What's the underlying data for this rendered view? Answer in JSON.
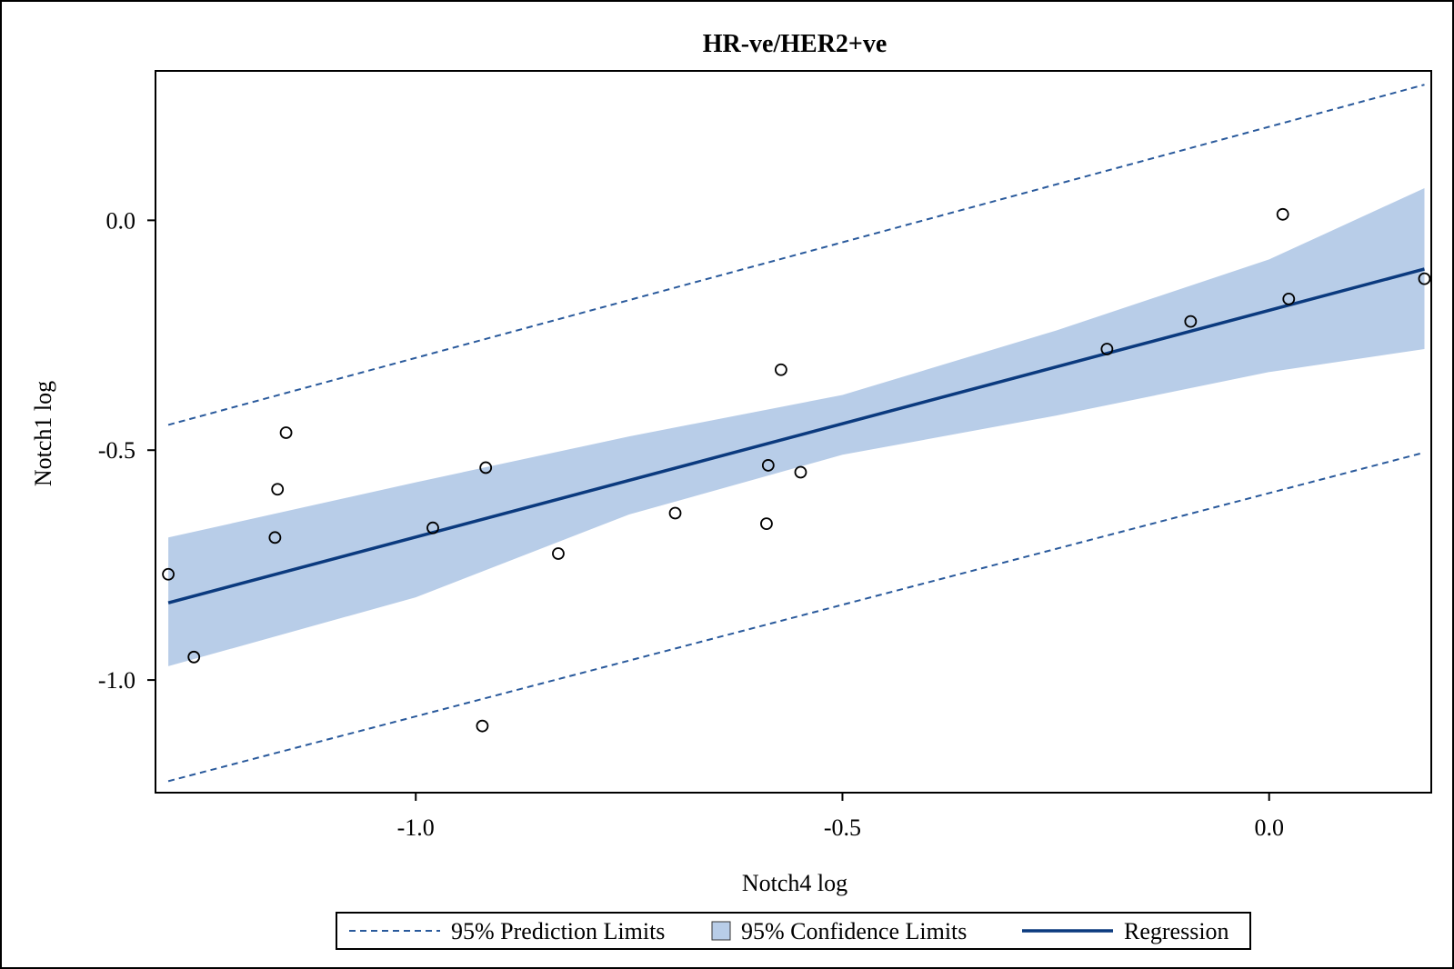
{
  "chart_data": {
    "type": "scatter",
    "title": "HR-ve/HER2+ve",
    "xlabel": "Notch4 log",
    "ylabel": "Notch1 log",
    "xlim": [
      -1.305,
      0.19
    ],
    "ylim": [
      -1.245,
      0.325
    ],
    "x_ticks": [
      -1.0,
      -0.5,
      0.0
    ],
    "x_tick_labels": [
      "-1.0",
      "-0.5",
      "0.0"
    ],
    "y_ticks": [
      -1.0,
      -0.5,
      0.0
    ],
    "y_tick_labels": [
      "-1.0",
      "-0.5",
      "0.0"
    ],
    "grid": false,
    "legend_position": "bottom",
    "points": [
      {
        "x": -1.29,
        "y": -0.77
      },
      {
        "x": -1.26,
        "y": -0.95
      },
      {
        "x": -1.165,
        "y": -0.69
      },
      {
        "x": -1.162,
        "y": -0.585
      },
      {
        "x": -1.152,
        "y": -0.462
      },
      {
        "x": -0.98,
        "y": -0.669
      },
      {
        "x": -0.918,
        "y": -0.538
      },
      {
        "x": -0.922,
        "y": -1.1
      },
      {
        "x": -0.833,
        "y": -0.725
      },
      {
        "x": -0.696,
        "y": -0.637
      },
      {
        "x": -0.589,
        "y": -0.66
      },
      {
        "x": -0.587,
        "y": -0.533
      },
      {
        "x": -0.572,
        "y": -0.325
      },
      {
        "x": -0.549,
        "y": -0.548
      },
      {
        "x": -0.19,
        "y": -0.28
      },
      {
        "x": -0.092,
        "y": -0.22
      },
      {
        "x": 0.016,
        "y": 0.013
      },
      {
        "x": 0.023,
        "y": -0.171
      },
      {
        "x": 0.182,
        "y": -0.127
      }
    ],
    "regression": {
      "x": [
        -1.29,
        0.182
      ],
      "y": [
        -0.832,
        -0.106
      ]
    },
    "confidence_band": {
      "x": [
        -1.29,
        -1.0,
        -0.75,
        -0.5,
        -0.25,
        0.0,
        0.182
      ],
      "upper": [
        -0.69,
        -0.57,
        -0.47,
        -0.38,
        -0.24,
        -0.085,
        0.07
      ],
      "lower": [
        -0.97,
        -0.82,
        -0.64,
        -0.51,
        -0.425,
        -0.33,
        -0.28
      ]
    },
    "prediction_limits": {
      "x": [
        -1.29,
        0.182
      ],
      "upper": [
        -0.445,
        0.295
      ],
      "lower": [
        -1.22,
        -0.505
      ]
    },
    "legend": [
      {
        "label": "95% Prediction Limits",
        "kind": "dashed-line"
      },
      {
        "label": "95% Confidence Limits",
        "kind": "band"
      },
      {
        "label": "Regression",
        "kind": "line"
      }
    ],
    "colors": {
      "regression": "#0b3a7e",
      "band": "#b8cde8",
      "prediction": "#2a5a9c",
      "points": "#000000",
      "axis": "#000000"
    }
  }
}
